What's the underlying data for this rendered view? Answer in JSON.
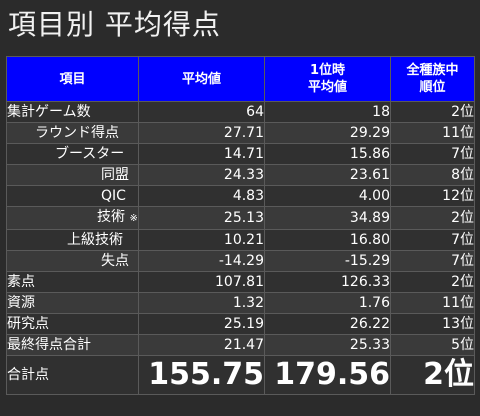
{
  "title": "項目別 平均得点",
  "headers": {
    "item": "項目",
    "avg": "平均値",
    "first_avg_line1": "1位時",
    "first_avg_line2": "平均値",
    "rank_line1": "全種族中",
    "rank_line2": "順位"
  },
  "rows": [
    {
      "label": "集計ゲーム数",
      "avg": "64",
      "first": "18",
      "rank": "2位"
    },
    {
      "label": "ラウンド得点",
      "avg": "27.71",
      "first": "29.29",
      "rank": "11位"
    },
    {
      "label": "ブースター",
      "avg": "14.71",
      "first": "15.86",
      "rank": "7位"
    },
    {
      "label": "同盟",
      "avg": "24.33",
      "first": "23.61",
      "rank": "8位"
    },
    {
      "label": "QIC",
      "avg": "4.83",
      "first": "4.00",
      "rank": "12位"
    },
    {
      "label": "技術",
      "note": "※1",
      "avg": "25.13",
      "first": "34.89",
      "rank": "2位"
    },
    {
      "label": "上級技術",
      "avg": "10.21",
      "first": "16.80",
      "rank": "7位"
    },
    {
      "label": "失点",
      "avg": "-14.29",
      "first": "-15.29",
      "rank": "7位"
    },
    {
      "label": "素点",
      "avg": "107.81",
      "first": "126.33",
      "rank": "2位"
    },
    {
      "label": "資源",
      "avg": "1.32",
      "first": "1.76",
      "rank": "11位"
    },
    {
      "label": "研究点",
      "avg": "25.19",
      "first": "26.22",
      "rank": "13位"
    },
    {
      "label": "最終得点合計",
      "avg": "21.47",
      "first": "25.33",
      "rank": "5位"
    }
  ],
  "total": {
    "label": "合計点",
    "avg": "155.75",
    "first": "179.56",
    "rank": "2位"
  }
}
